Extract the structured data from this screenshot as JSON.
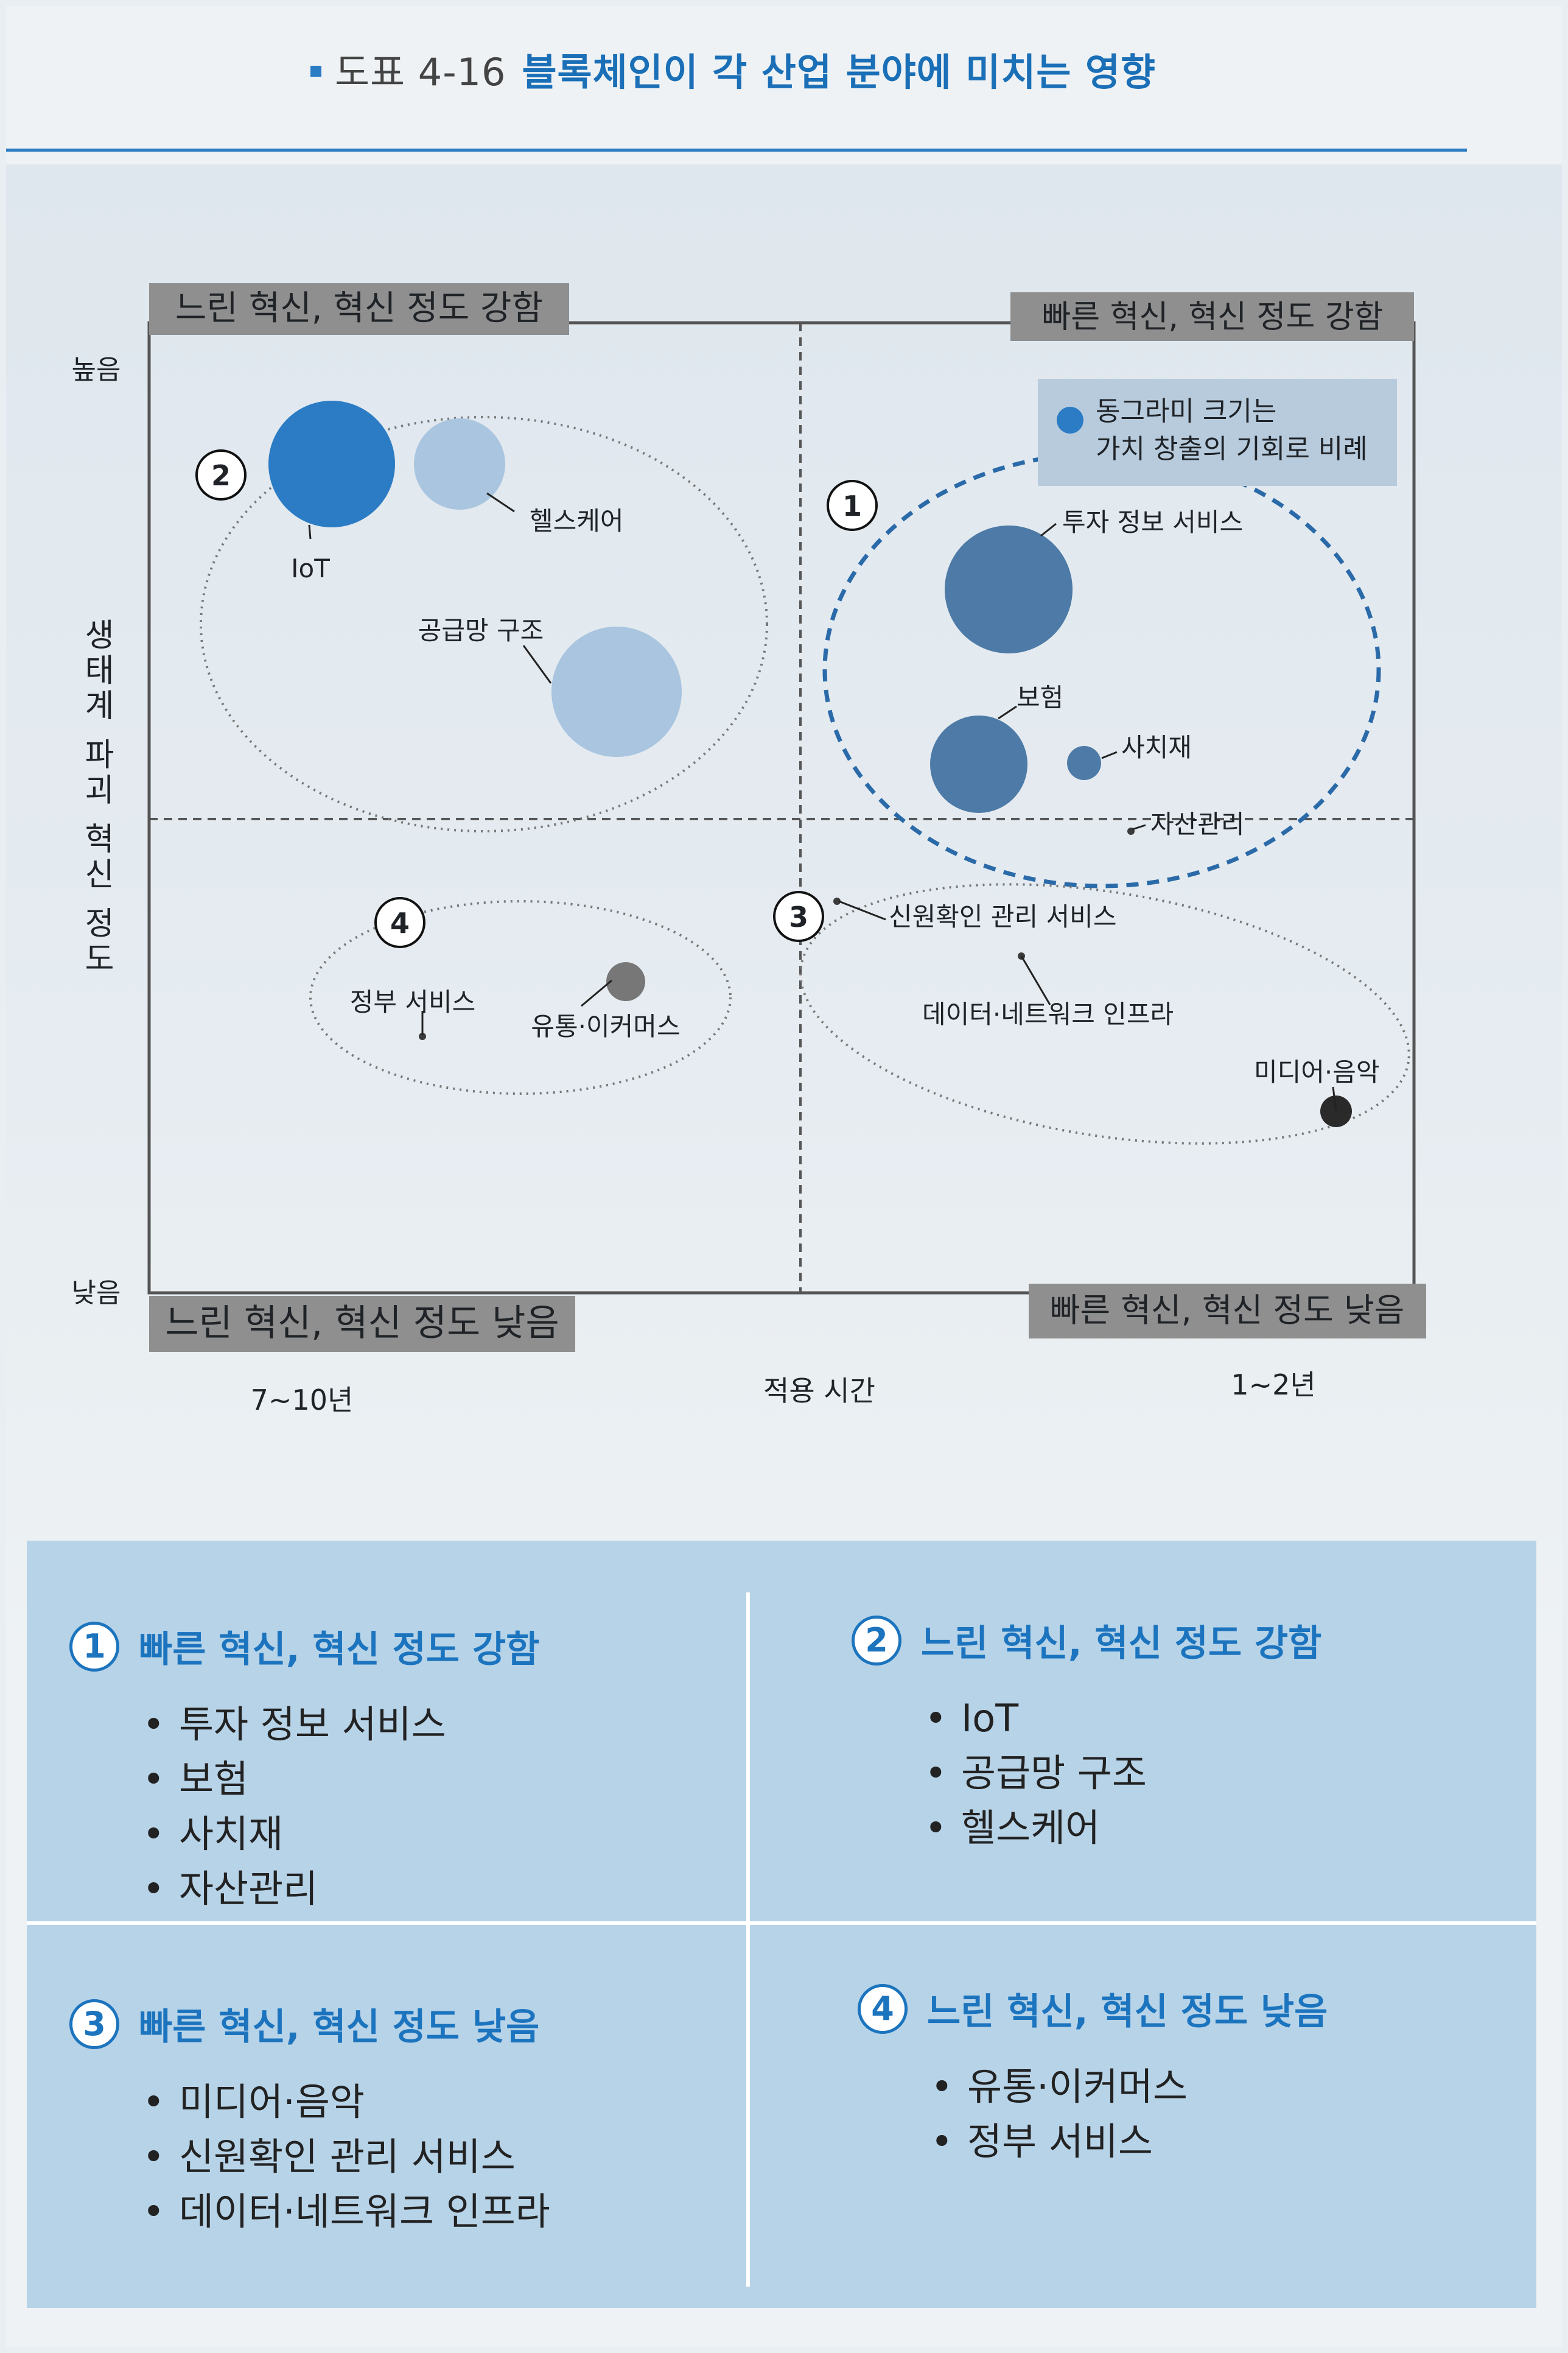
{
  "header": {
    "figure_number": "도표 4-16",
    "title": "블록체인이 각 산업 분야에 미치는 영향"
  },
  "diagram": {
    "y_axis_label": "생태계 파괴 혁신 정도",
    "y_high": "높음",
    "y_low": "낮음",
    "x_axis_label": "적용 시간",
    "x_left": "7~10년",
    "x_right": "1~2년",
    "quadrant_tags": {
      "top_left": "느린 혁신, 혁신 정도 강함",
      "top_right": "빠른 혁신, 혁신 정도 강함",
      "bottom_left": "느린 혁신, 혁신 정도 낮음",
      "bottom_right": "빠른 혁신, 혁신 정도 낮음"
    },
    "legend_lines": [
      "동그라미 크기는",
      "가치 창출의 기회로 비례"
    ],
    "group_numbers": [
      "1",
      "2",
      "3",
      "4"
    ],
    "items": {
      "iot": "IoT",
      "healthcare": "헬스케어",
      "supply_chain": "공급망 구조",
      "investment": "투자 정보 서비스",
      "insurance": "보험",
      "luxury": "사치재",
      "asset": "자산관리",
      "government": "정부 서비스",
      "distribution": "유통·이커머스",
      "credit": "신원확인 관리 서비스",
      "data_infra": "데이터·네트워크 인프라",
      "media": "미디어·음악"
    },
    "colors": {
      "strong_blue": "#2b7cc4",
      "light_blue": "#a9c5df",
      "steel_blue": "#4d7aa6",
      "dark_gray": "#3b3b3b",
      "tag_gray": "#8f8f8f"
    }
  },
  "summary": [
    {
      "number": "1",
      "heading": "빠른 혁신, 혁신 정도 강함",
      "items": [
        "투자 정보 서비스",
        "보험",
        "사치재",
        "자산관리"
      ]
    },
    {
      "number": "2",
      "heading": "느린 혁신, 혁신 정도 강함",
      "items": [
        "IoT",
        "공급망 구조",
        "헬스케어"
      ]
    },
    {
      "number": "3",
      "heading": "빠른 혁신, 혁신 정도 낮음",
      "items": [
        "미디어·음악",
        "신원확인 관리 서비스",
        "데이터·네트워크 인프라"
      ]
    },
    {
      "number": "4",
      "heading": "느린 혁신, 혁신 정도 낮음",
      "items": [
        "유통·이커머스",
        "정부 서비스"
      ]
    }
  ]
}
